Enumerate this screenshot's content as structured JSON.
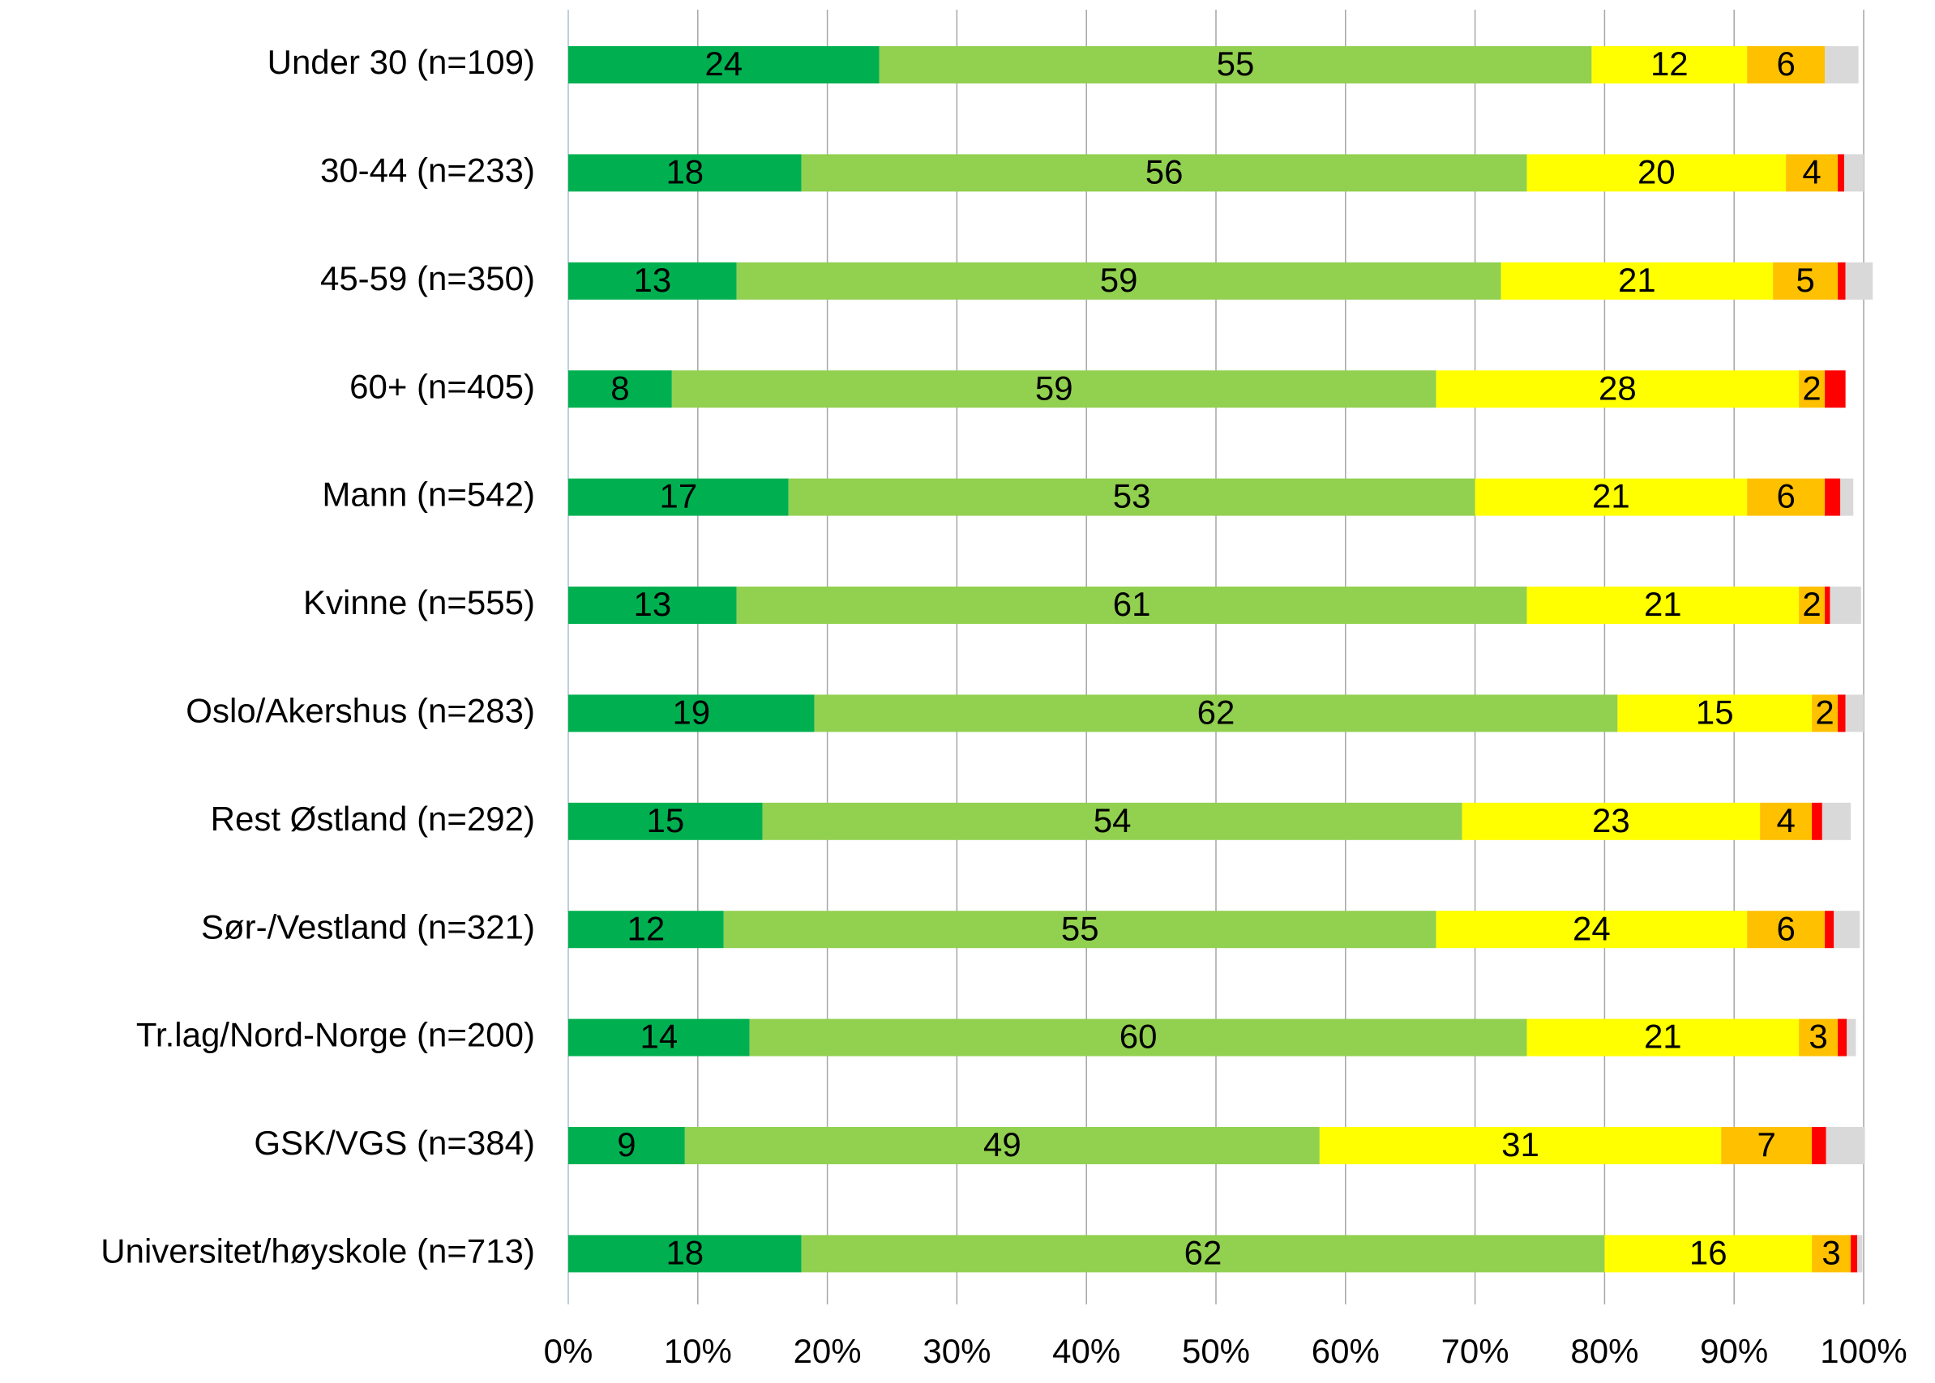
{
  "chart_data": {
    "type": "stacked_barh",
    "categories": [
      "Under 30 (n=109)",
      "30-44 (n=233)",
      "45-59 (n=350)",
      "60+ (n=405)",
      "Mann (n=542)",
      "Kvinne (n=555)",
      "Oslo/Akershus (n=283)",
      "Rest Østland (n=292)",
      "Sør-/Vestland (n=321)",
      "Tr.lag/Nord-Norge (n=200)",
      "GSK/VGS (n=384)",
      "Universitet/høyskole (n=713)"
    ],
    "series": [
      {
        "color": "#00b050",
        "labels": true,
        "values": [
          24,
          18,
          13,
          8,
          17,
          13,
          19,
          15,
          12,
          14,
          9,
          18
        ]
      },
      {
        "color": "#92d050",
        "labels": true,
        "values": [
          55,
          56,
          59,
          59,
          53,
          61,
          62,
          54,
          55,
          60,
          49,
          62
        ]
      },
      {
        "color": "#ffff00",
        "labels": true,
        "values": [
          12,
          20,
          21,
          28,
          21,
          21,
          15,
          23,
          24,
          21,
          31,
          16
        ]
      },
      {
        "color": "#ffc000",
        "labels": true,
        "values": [
          6,
          4,
          5,
          2,
          6,
          2,
          2,
          4,
          6,
          3,
          7,
          3
        ]
      },
      {
        "color": "#ff0000",
        "labels": false,
        "values": [
          0,
          0.5,
          0.6,
          1.6,
          1.2,
          0.4,
          0.6,
          0.8,
          0.7,
          0.7,
          1.1,
          0.5
        ]
      },
      {
        "color": "#d9d9d9",
        "labels": false,
        "values": [
          2.6,
          1.5,
          2.1,
          0,
          1,
          2.4,
          1.4,
          2.2,
          2,
          0.7,
          3,
          0.4
        ]
      }
    ],
    "xlim": [
      0,
      100
    ],
    "xticks": [
      {
        "value": 0,
        "label": "0%"
      },
      {
        "value": 10,
        "label": "10%"
      },
      {
        "value": 20,
        "label": "20%"
      },
      {
        "value": 30,
        "label": "30%"
      },
      {
        "value": 40,
        "label": "40%"
      },
      {
        "value": 50,
        "label": "50%"
      },
      {
        "value": 60,
        "label": "60%"
      },
      {
        "value": 70,
        "label": "70%"
      },
      {
        "value": 80,
        "label": "80%"
      },
      {
        "value": 90,
        "label": "90%"
      },
      {
        "value": 100,
        "label": "100%"
      }
    ],
    "grid": true
  }
}
